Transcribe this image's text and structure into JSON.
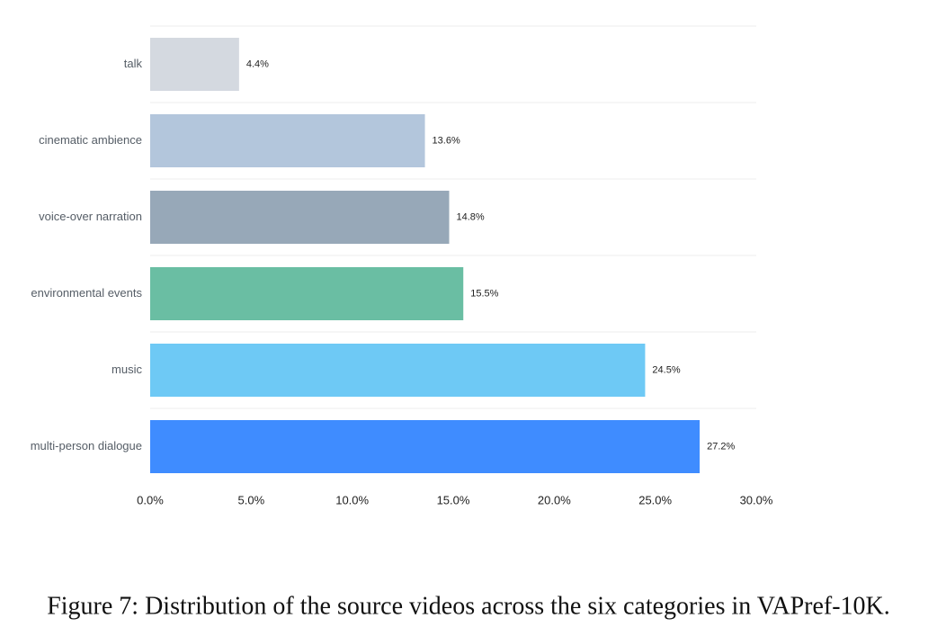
{
  "chart_data": {
    "type": "barh",
    "categories": [
      "talk",
      "cinematic ambience",
      "voice-over narration",
      "environmental events",
      "music",
      "multi-person dialogue"
    ],
    "values": [
      4.4,
      13.6,
      14.8,
      15.5,
      24.5,
      27.2
    ],
    "value_labels": [
      "4.4%",
      "13.6%",
      "14.8%",
      "15.5%",
      "24.5%",
      "27.2%"
    ],
    "colors": [
      "#d4d9e0",
      "#b3c6dc",
      "#97a8b8",
      "#6abea3",
      "#6ec9f5",
      "#3f8cff"
    ],
    "xlim": [
      0,
      30
    ],
    "xticks": [
      {
        "value": 0,
        "label": "0.0%"
      },
      {
        "value": 5,
        "label": "5.0%"
      },
      {
        "value": 10,
        "label": "10.0%"
      },
      {
        "value": 15,
        "label": "15.0%"
      },
      {
        "value": 20,
        "label": "20.0%"
      },
      {
        "value": 25,
        "label": "25.0%"
      },
      {
        "value": 30,
        "label": "30.0%"
      }
    ],
    "caption": "Figure 7: Distribution of the source videos across the six categories in VAPref-10K."
  }
}
